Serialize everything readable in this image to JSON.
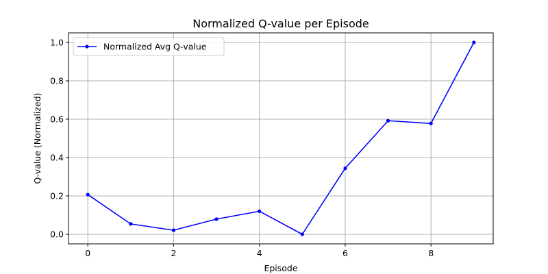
{
  "chart_data": {
    "type": "line",
    "title": "Normalized Q-value per Episode",
    "xlabel": "Episode",
    "ylabel": "Q-value (Normalized)",
    "xlim": [
      -0.45,
      9.45
    ],
    "ylim": [
      -0.05,
      1.05
    ],
    "xticks": [
      0,
      2,
      4,
      6,
      8
    ],
    "yticks": [
      0.0,
      0.2,
      0.4,
      0.6,
      0.8,
      1.0
    ],
    "xtick_labels": [
      "0",
      "2",
      "4",
      "6",
      "8"
    ],
    "ytick_labels": [
      "0.0",
      "0.2",
      "0.4",
      "0.6",
      "0.8",
      "1.0"
    ],
    "grid": true,
    "legend_position": "top-left",
    "series": [
      {
        "name": "Normalized Avg Q-value",
        "color": "#0000ff",
        "marker": "circle",
        "x": [
          0,
          1,
          2,
          3,
          4,
          5,
          6,
          7,
          8,
          9
        ],
        "y": [
          0.207,
          0.054,
          0.021,
          0.079,
          0.12,
          0.0,
          0.344,
          0.592,
          0.578,
          1.0
        ]
      }
    ]
  }
}
